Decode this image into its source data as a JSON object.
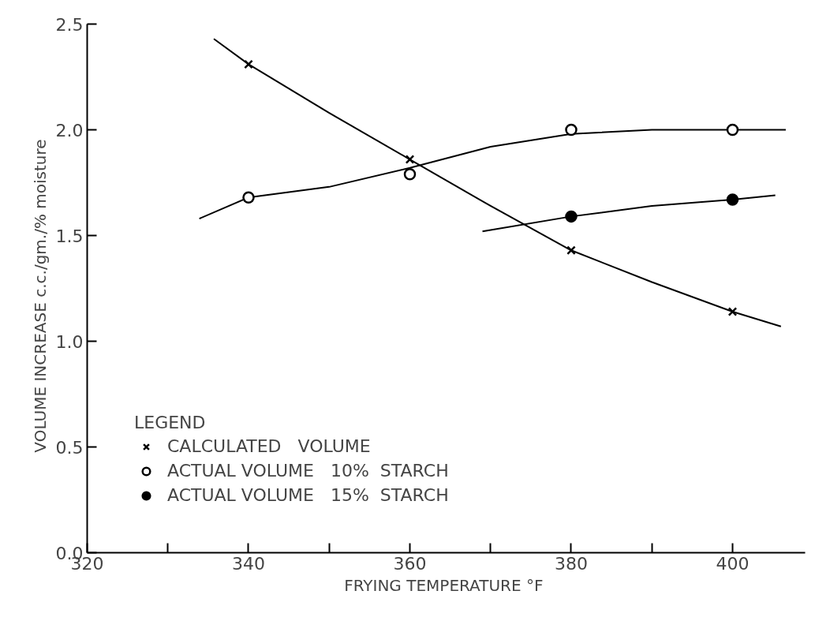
{
  "chart_data": {
    "type": "line",
    "xlabel": "FRYING  TEMPERATURE °F",
    "ylabel": "VOLUME  INCREASE   c.c./gm./% moisture",
    "legend_title": "LEGEND",
    "legend": "bottom left",
    "grid": false,
    "xlim": [
      320,
      409
    ],
    "xticks": [
      320,
      {
        "value": 330,
        "label": null
      },
      340,
      {
        "value": 350,
        "label": null
      },
      360,
      {
        "value": 370,
        "label": null
      },
      380,
      {
        "value": 390,
        "label": null
      },
      400
    ],
    "ylim": [
      0,
      2.5
    ],
    "yticks": [
      {
        "value": 0,
        "label": "0.0"
      },
      {
        "value": 0.5,
        "label": "0.5"
      },
      {
        "value": 1.0,
        "label": "1.0"
      },
      {
        "value": 1.5,
        "label": "1.5"
      },
      {
        "value": 2.0,
        "label": "2.0"
      },
      {
        "value": 2.5,
        "label": "2.5"
      }
    ],
    "series": [
      {
        "color": "#000000",
        "marker": "none",
        "x": [
          335.7,
          340,
          350,
          360,
          370,
          380,
          390,
          400,
          406
        ],
        "values": [
          2.43,
          2.31,
          2.08,
          1.86,
          1.64,
          1.43,
          1.28,
          1.14,
          1.07
        ]
      },
      {
        "color": "#000000",
        "marker": "none",
        "x": [
          333.9,
          340,
          350,
          360,
          370,
          380,
          390,
          400,
          406.6
        ],
        "values": [
          1.58,
          1.68,
          1.73,
          1.82,
          1.92,
          1.98,
          2.0,
          2.0,
          2.0
        ]
      },
      {
        "color": "#000000",
        "marker": "none",
        "x": [
          369,
          380,
          390,
          400,
          405.3
        ],
        "values": [
          1.52,
          1.59,
          1.64,
          1.67,
          1.69
        ]
      },
      {
        "type": "scatter",
        "name": "CALCULATED   VOLUME",
        "color": "#000000",
        "marker": "cross",
        "x": [
          340,
          360,
          380,
          400
        ],
        "values": [
          2.31,
          1.86,
          1.43,
          1.14
        ]
      },
      {
        "type": "scatter",
        "name": "ACTUAL VOLUME   10%  STARCH",
        "color": "#ffffff",
        "marker": "circle",
        "x": [
          340,
          360,
          380,
          400
        ],
        "values": [
          1.68,
          1.79,
          2.0,
          2.0
        ]
      },
      {
        "type": "scatter",
        "name": "ACTUAL VOLUME   15%  STARCH",
        "color": "#000000",
        "marker": "circle",
        "x": [
          380,
          400
        ],
        "values": [
          1.59,
          1.67
        ]
      }
    ]
  }
}
